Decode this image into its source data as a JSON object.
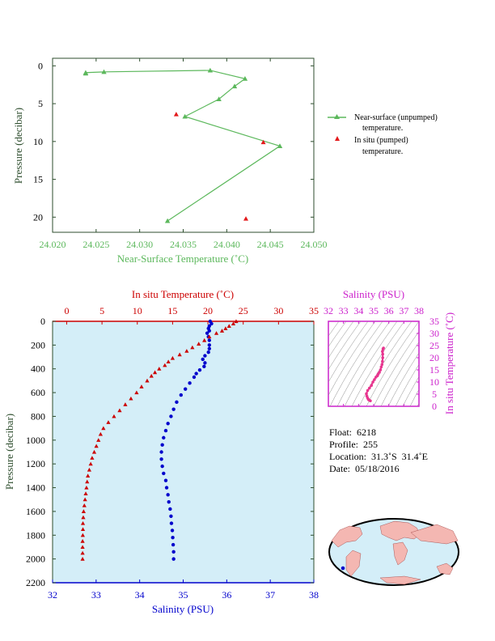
{
  "chart_data": [
    {
      "type": "line",
      "xlabel": "Near-Surface Temperature (˚C)",
      "ylabel": "Pressure (decibar)",
      "xlim": [
        24.02,
        24.05
      ],
      "ylim": [
        22,
        -1
      ],
      "x_ticks": [
        "24.020",
        "24.025",
        "24.030",
        "24.035",
        "24.040",
        "24.045",
        "24.050"
      ],
      "y_ticks": [
        "0",
        "5",
        "10",
        "15",
        "20"
      ],
      "legend_position": "right",
      "series": [
        {
          "name": "Near-surface (unpumped) temperature.",
          "color": "#5cb85c",
          "marker": "triangle",
          "points": [
            [
              24.0238,
              1.0
            ],
            [
              24.0238,
              0.9
            ],
            [
              24.0259,
              0.8
            ],
            [
              24.0381,
              0.6
            ],
            [
              24.0421,
              1.7
            ],
            [
              24.0409,
              2.7
            ],
            [
              24.0391,
              4.4
            ],
            [
              24.0352,
              6.7
            ],
            [
              24.0461,
              10.6
            ],
            [
              24.0332,
              20.5
            ]
          ]
        },
        {
          "name": "In situ (pumped) temperature.",
          "color": "#e31a1c",
          "marker": "triangle",
          "points": [
            [
              24.0342,
              6.4
            ],
            [
              24.0442,
              10.1
            ],
            [
              24.0422,
              20.2
            ]
          ]
        }
      ]
    },
    {
      "type": "line",
      "ylabel": "Pressure (decibar)",
      "ylim": [
        2200,
        0
      ],
      "y_ticks": [
        "0",
        "200",
        "400",
        "600",
        "800",
        "1000",
        "1200",
        "1400",
        "1600",
        "1800",
        "2000",
        "2200"
      ],
      "temperature_axis": {
        "label": "In situ Temperature (˚C)",
        "range": [
          -2,
          35
        ],
        "ticks": [
          "0",
          "5",
          "10",
          "15",
          "20",
          "25",
          "30",
          "35"
        ],
        "color": "#cc0000"
      },
      "salinity_axis": {
        "label": "Salinity (PSU)",
        "range": [
          32,
          38
        ],
        "ticks": [
          "32",
          "33",
          "34",
          "35",
          "36",
          "37",
          "38"
        ],
        "color": "#0000cc"
      },
      "temperature": [
        [
          24.0,
          0
        ],
        [
          23.6,
          20
        ],
        [
          23.0,
          40
        ],
        [
          22.5,
          60
        ],
        [
          22.0,
          80
        ],
        [
          21.2,
          100
        ],
        [
          20.2,
          130
        ],
        [
          19.5,
          160
        ],
        [
          18.7,
          190
        ],
        [
          17.8,
          220
        ],
        [
          17.0,
          250
        ],
        [
          16.0,
          280
        ],
        [
          15.0,
          310
        ],
        [
          14.4,
          340
        ],
        [
          13.9,
          370
        ],
        [
          13.1,
          400
        ],
        [
          12.5,
          430
        ],
        [
          12.0,
          460
        ],
        [
          11.4,
          500
        ],
        [
          10.6,
          550
        ],
        [
          9.9,
          600
        ],
        [
          9.1,
          650
        ],
        [
          8.3,
          700
        ],
        [
          7.5,
          750
        ],
        [
          6.7,
          800
        ],
        [
          5.9,
          850
        ],
        [
          5.2,
          900
        ],
        [
          4.8,
          950
        ],
        [
          4.5,
          1000
        ],
        [
          4.2,
          1050
        ],
        [
          3.9,
          1100
        ],
        [
          3.6,
          1150
        ],
        [
          3.4,
          1200
        ],
        [
          3.2,
          1250
        ],
        [
          3.0,
          1300
        ],
        [
          2.9,
          1350
        ],
        [
          2.8,
          1400
        ],
        [
          2.7,
          1450
        ],
        [
          2.6,
          1500
        ],
        [
          2.5,
          1550
        ],
        [
          2.4,
          1600
        ],
        [
          2.35,
          1650
        ],
        [
          2.3,
          1700
        ],
        [
          2.3,
          1750
        ],
        [
          2.28,
          1800
        ],
        [
          2.25,
          1850
        ],
        [
          2.25,
          1900
        ],
        [
          2.25,
          1950
        ],
        [
          2.25,
          2000
        ]
      ],
      "salinity": [
        [
          35.62,
          0
        ],
        [
          35.65,
          20
        ],
        [
          35.6,
          40
        ],
        [
          35.58,
          60
        ],
        [
          35.6,
          80
        ],
        [
          35.55,
          100
        ],
        [
          35.58,
          130
        ],
        [
          35.6,
          160
        ],
        [
          35.6,
          200
        ],
        [
          35.6,
          230
        ],
        [
          35.58,
          260
        ],
        [
          35.5,
          290
        ],
        [
          35.45,
          320
        ],
        [
          35.5,
          350
        ],
        [
          35.48,
          380
        ],
        [
          35.38,
          410
        ],
        [
          35.3,
          440
        ],
        [
          35.25,
          470
        ],
        [
          35.15,
          520
        ],
        [
          35.05,
          570
        ],
        [
          34.95,
          620
        ],
        [
          34.85,
          680
        ],
        [
          34.78,
          740
        ],
        [
          34.72,
          800
        ],
        [
          34.65,
          860
        ],
        [
          34.6,
          920
        ],
        [
          34.55,
          980
        ],
        [
          34.52,
          1040
        ],
        [
          34.5,
          1100
        ],
        [
          34.5,
          1160
        ],
        [
          34.52,
          1220
        ],
        [
          34.55,
          1280
        ],
        [
          34.6,
          1340
        ],
        [
          34.62,
          1400
        ],
        [
          34.65,
          1460
        ],
        [
          34.67,
          1520
        ],
        [
          34.7,
          1580
        ],
        [
          34.72,
          1640
        ],
        [
          34.73,
          1700
        ],
        [
          34.75,
          1760
        ],
        [
          34.76,
          1820
        ],
        [
          34.77,
          1880
        ],
        [
          34.78,
          1940
        ],
        [
          34.78,
          2000
        ]
      ]
    },
    {
      "type": "scatter",
      "xlabel": "Salinity (PSU)",
      "ylabel": "In situ Temperature (˚C)",
      "xlim": [
        32,
        38
      ],
      "ylim": [
        0,
        35
      ],
      "x_ticks": [
        "32",
        "33",
        "34",
        "35",
        "36",
        "37",
        "38"
      ],
      "y_ticks": [
        "0",
        "5",
        "10",
        "15",
        "20",
        "25",
        "30",
        "35"
      ],
      "color": "#e8368f",
      "points": [
        [
          34.78,
          2.25
        ],
        [
          34.72,
          2.5
        ],
        [
          34.65,
          2.8
        ],
        [
          34.6,
          3.4
        ],
        [
          34.55,
          4.2
        ],
        [
          34.52,
          5.2
        ],
        [
          34.6,
          6.5
        ],
        [
          34.72,
          7.5
        ],
        [
          34.85,
          8.6
        ],
        [
          34.95,
          10.0
        ],
        [
          35.05,
          11.0
        ],
        [
          35.15,
          12.0
        ],
        [
          35.25,
          12.6
        ],
        [
          35.3,
          13.3
        ],
        [
          35.38,
          14.0
        ],
        [
          35.45,
          15.0
        ],
        [
          35.5,
          16.2
        ],
        [
          35.55,
          17.2
        ],
        [
          35.58,
          18.5
        ],
        [
          35.6,
          20.0
        ],
        [
          35.6,
          21.5
        ],
        [
          35.58,
          22.6
        ],
        [
          35.62,
          23.6
        ],
        [
          35.65,
          24.0
        ]
      ]
    }
  ],
  "info": {
    "float": "Float:  6218",
    "profile": "Profile:  255",
    "location": "Location:  31.3˚S  31.4˚E",
    "date": "Date:  05/18/2016"
  },
  "colors": {
    "green": "#5cb85c",
    "red": "#cc0000",
    "blue": "#0000cc",
    "magenta": "#cc22cc",
    "plot_bg": "#d4eef8",
    "axis_dark": "#2e4e2e"
  }
}
